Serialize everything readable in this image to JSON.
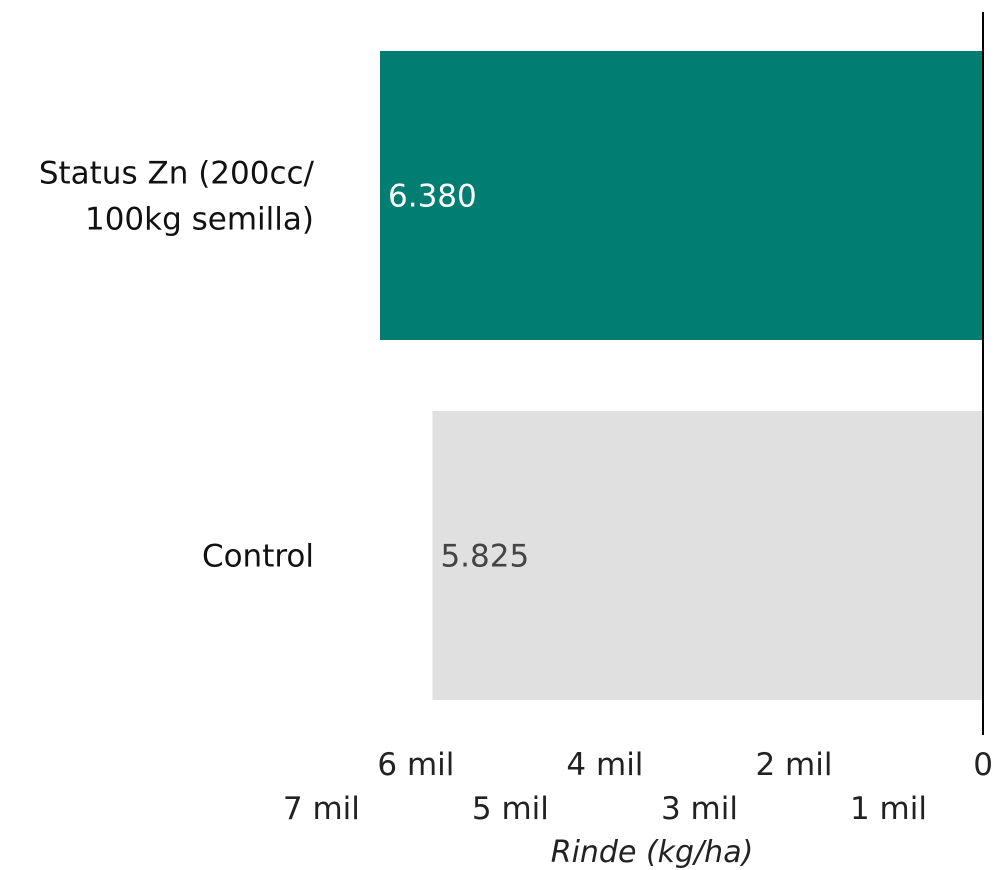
{
  "chart_data": {
    "type": "bar",
    "orientation": "horizontal",
    "x_axis_reversed": true,
    "categories": [
      "Status Zn (200cc/ 100kg semilla)",
      "Control"
    ],
    "category_lines": [
      [
        "Status Zn (200cc/",
        "100kg semilla)"
      ],
      [
        "Control"
      ]
    ],
    "values": [
      6380,
      5825
    ],
    "value_labels": [
      "6.380",
      "5.825"
    ],
    "bar_colors": [
      "#017E71",
      "#E0E0E0"
    ],
    "value_label_colors": [
      "#FFFFFF",
      "#444444"
    ],
    "xlabel": "Rinde (kg/ha)",
    "xlim": [
      0,
      7000
    ],
    "ticks": [
      {
        "value": 0,
        "label": "0"
      },
      {
        "value": 1000,
        "label": "1 mil"
      },
      {
        "value": 2000,
        "label": "2 mil"
      },
      {
        "value": 3000,
        "label": "3 mil"
      },
      {
        "value": 4000,
        "label": "4 mil"
      },
      {
        "value": 5000,
        "label": "5 mil"
      },
      {
        "value": 6000,
        "label": "6 mil"
      },
      {
        "value": 7000,
        "label": "7 mil"
      }
    ],
    "grid": false,
    "legend": "none"
  }
}
